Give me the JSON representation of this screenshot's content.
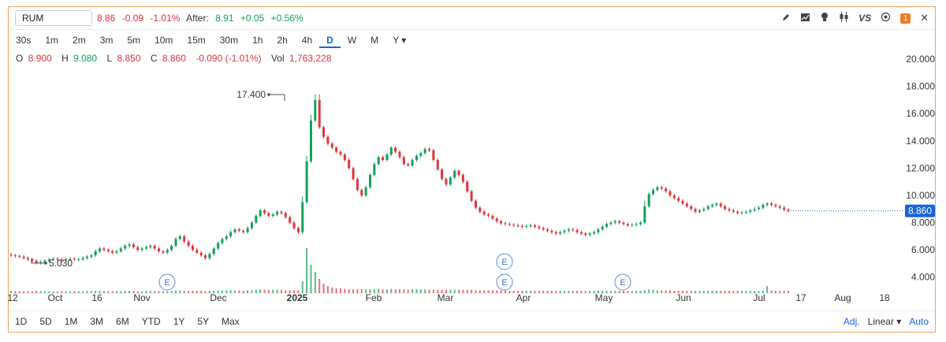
{
  "symbol": "RUM",
  "quote": {
    "last": "8.86",
    "change": "-0.09",
    "change_pct": "-1.01%",
    "after_label": "After:",
    "after_price": "8.91",
    "after_change": "+0.05",
    "after_pct": "+0.56%"
  },
  "toolbar_icons": [
    "pencil-icon",
    "chart-icon",
    "bulb-icon",
    "candles-icon",
    "vs-icon",
    "settings-icon",
    "notification-badge",
    "close-icon"
  ],
  "toolbar": {
    "vs": "VS",
    "badge": "1",
    "close": "✕"
  },
  "intervals": [
    "30s",
    "1m",
    "2m",
    "3m",
    "5m",
    "10m",
    "15m",
    "30m",
    "1h",
    "2h",
    "4h",
    "D",
    "W",
    "M",
    "Y ▾"
  ],
  "active_interval": "D",
  "ohlc": {
    "o_label": "O",
    "o": "8.900",
    "h_label": "H",
    "h": "9.080",
    "l_label": "L",
    "l": "8.850",
    "c_label": "C",
    "c": "8.860",
    "chg": "-0.090 (-1.01%)",
    "vol_label": "Vol",
    "vol": "1,763,228"
  },
  "ranges": [
    "1D",
    "5D",
    "1M",
    "3M",
    "6M",
    "YTD",
    "1Y",
    "5Y",
    "Max"
  ],
  "scale_controls": {
    "adj": "Adj.",
    "scale": "Linear ▾",
    "auto": "Auto"
  },
  "colors": {
    "up": "#12a05c",
    "down": "#e0353b",
    "accent": "#1565d8",
    "border": "#f0a560"
  },
  "chart_data": {
    "type": "candlestick",
    "x_tick_labels": [
      "12",
      "Oct",
      "16",
      "Nov",
      "Dec",
      "2025",
      "Feb",
      "Mar",
      "Apr",
      "May",
      "Jun",
      "Jul",
      "17",
      "Aug",
      "18"
    ],
    "y_tick_labels": [
      "4.000",
      "6.000",
      "8.000",
      "10.000",
      "12.000",
      "14.000",
      "16.000",
      "18.000",
      "20.000"
    ],
    "ylim": [
      3.0,
      20.0
    ],
    "last_price_label": "8.860",
    "annotations": [
      {
        "label": "17.400",
        "value": 17.4
      },
      {
        "label": "5.030",
        "value": 5.03
      }
    ],
    "earnings_markers": [
      "E",
      "E",
      "E",
      "E"
    ],
    "close_values": [
      5.6,
      5.55,
      5.5,
      5.4,
      5.3,
      5.2,
      5.05,
      5.1,
      5.2,
      5.3,
      5.35,
      5.3,
      5.25,
      5.3,
      5.35,
      5.3,
      5.3,
      5.4,
      5.5,
      5.6,
      5.9,
      6.1,
      6.0,
      5.9,
      5.8,
      5.9,
      6.1,
      6.3,
      6.4,
      6.2,
      6.0,
      6.1,
      6.2,
      6.3,
      6.1,
      5.9,
      5.8,
      6.0,
      6.3,
      6.8,
      7.0,
      6.6,
      6.3,
      6.0,
      5.8,
      5.6,
      5.4,
      5.7,
      6.1,
      6.5,
      6.8,
      7.0,
      7.3,
      7.5,
      7.4,
      7.3,
      7.6,
      8.0,
      8.5,
      8.9,
      8.7,
      8.5,
      8.6,
      8.8,
      8.7,
      8.4,
      8.0,
      7.6,
      7.3,
      9.5,
      12.5,
      15.5,
      17.0,
      15.0,
      14.3,
      13.8,
      13.5,
      13.2,
      13.0,
      12.6,
      12.0,
      11.2,
      10.4,
      10.0,
      10.6,
      11.5,
      12.3,
      12.8,
      12.6,
      13.0,
      13.5,
      13.2,
      12.8,
      12.3,
      12.2,
      12.6,
      12.9,
      13.1,
      13.4,
      13.3,
      12.6,
      11.9,
      11.2,
      10.8,
      11.3,
      11.8,
      11.5,
      11.0,
      10.3,
      9.6,
      9.1,
      8.8,
      8.6,
      8.5,
      8.3,
      8.1,
      7.95,
      7.9,
      7.85,
      7.8,
      7.75,
      7.7,
      7.75,
      7.8,
      7.7,
      7.6,
      7.5,
      7.4,
      7.3,
      7.2,
      7.3,
      7.4,
      7.5,
      7.45,
      7.3,
      7.2,
      7.1,
      7.2,
      7.3,
      7.5,
      7.7,
      7.9,
      8.0,
      8.1,
      8.0,
      7.9,
      7.8,
      7.85,
      7.9,
      8.0,
      9.2,
      10.1,
      10.4,
      10.6,
      10.5,
      10.3,
      10.0,
      9.8,
      9.6,
      9.4,
      9.2,
      9.0,
      8.8,
      8.9,
      9.0,
      9.2,
      9.3,
      9.4,
      9.2,
      9.0,
      8.9,
      8.8,
      8.7,
      8.75,
      8.8,
      8.9,
      9.0,
      9.1,
      9.3,
      9.4,
      9.3,
      9.2,
      9.1,
      8.95,
      8.86
    ],
    "volume_values": [
      0.05,
      0.04,
      0.04,
      0.04,
      0.04,
      0.04,
      0.05,
      0.04,
      0.04,
      0.04,
      0.04,
      0.04,
      0.04,
      0.04,
      0.04,
      0.04,
      0.04,
      0.04,
      0.05,
      0.05,
      0.05,
      0.05,
      0.05,
      0.04,
      0.04,
      0.04,
      0.04,
      0.05,
      0.05,
      0.05,
      0.04,
      0.04,
      0.05,
      0.05,
      0.04,
      0.04,
      0.04,
      0.04,
      0.05,
      0.06,
      0.06,
      0.05,
      0.05,
      0.05,
      0.05,
      0.05,
      0.04,
      0.05,
      0.05,
      0.06,
      0.06,
      0.06,
      0.06,
      0.06,
      0.06,
      0.05,
      0.06,
      0.06,
      0.07,
      0.08,
      0.07,
      0.07,
      0.07,
      0.07,
      0.07,
      0.06,
      0.06,
      0.06,
      0.06,
      0.25,
      0.95,
      0.6,
      0.45,
      0.3,
      0.2,
      0.15,
      0.12,
      0.1,
      0.1,
      0.09,
      0.08,
      0.08,
      0.08,
      0.08,
      0.08,
      0.08,
      0.09,
      0.09,
      0.08,
      0.08,
      0.09,
      0.08,
      0.08,
      0.08,
      0.07,
      0.08,
      0.08,
      0.08,
      0.08,
      0.07,
      0.07,
      0.07,
      0.07,
      0.07,
      0.07,
      0.07,
      0.07,
      0.07,
      0.07,
      0.07,
      0.06,
      0.06,
      0.06,
      0.06,
      0.06,
      0.06,
      0.06,
      0.06,
      0.05,
      0.05,
      0.05,
      0.05,
      0.05,
      0.05,
      0.05,
      0.05,
      0.05,
      0.05,
      0.05,
      0.05,
      0.05,
      0.05,
      0.05,
      0.05,
      0.05,
      0.05,
      0.05,
      0.05,
      0.05,
      0.05,
      0.05,
      0.05,
      0.05,
      0.05,
      0.05,
      0.05,
      0.05,
      0.05,
      0.05,
      0.05,
      0.06,
      0.08,
      0.07,
      0.06,
      0.06,
      0.06,
      0.06,
      0.05,
      0.05,
      0.05,
      0.05,
      0.05,
      0.05,
      0.05,
      0.05,
      0.05,
      0.05,
      0.05,
      0.05,
      0.05,
      0.05,
      0.05,
      0.05,
      0.05,
      0.05,
      0.05,
      0.05,
      0.05,
      0.05,
      0.15,
      0.06,
      0.05,
      0.05,
      0.05,
      0.05
    ]
  }
}
